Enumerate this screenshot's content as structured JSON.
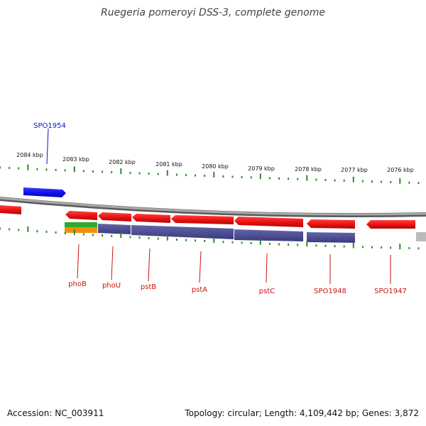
{
  "title": "Ruegeria pomeroyi DSS-3, complete genome",
  "footer": {
    "accession": "Accession: NC_003911",
    "summary": "Topology: circular; Length: 4,109,442 bp; Genes: 3,872"
  },
  "scale_labels": [
    "2084 kbp",
    "2083 kbp",
    "2082 kbp",
    "2081 kbp",
    "2080 kbp",
    "2079 kbp",
    "2078 kbp",
    "2077 kbp",
    "2076 kbp"
  ],
  "genes": {
    "forward": [
      {
        "label": "SPO1954",
        "color": "#1010ee"
      }
    ],
    "reverse": [
      {
        "label": "phoB",
        "color": "#ee1111"
      },
      {
        "label": "phoU",
        "color": "#ee1111"
      },
      {
        "label": "pstB",
        "color": "#ee1111"
      },
      {
        "label": "pstA",
        "color": "#ee1111"
      },
      {
        "label": "pstC",
        "color": "#ee1111"
      },
      {
        "label": "SPO1948",
        "color": "#ee1111"
      },
      {
        "label": "SPO1947",
        "color": "#ee1111"
      }
    ]
  },
  "colors": {
    "backbone": "#8a8a8a",
    "tick": "#2a8a2a",
    "forward_gene": "#1010ee",
    "reverse_gene": "#ee1111",
    "reverse_label": "#cc1111",
    "forward_label": "#1010cc",
    "cog_purple": "#4a4a8e",
    "cog_green": "#2eaa2e",
    "cog_orange": "#f09010",
    "cog_gray": "#bbbbbb"
  }
}
